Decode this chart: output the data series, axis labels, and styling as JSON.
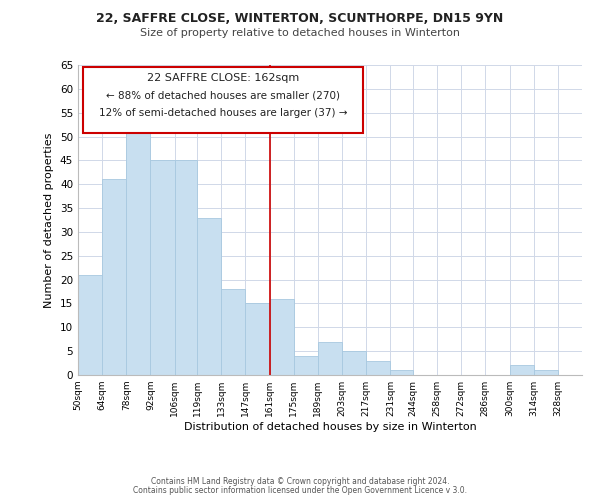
{
  "title": "22, SAFFRE CLOSE, WINTERTON, SCUNTHORPE, DN15 9YN",
  "subtitle": "Size of property relative to detached houses in Winterton",
  "xlabel": "Distribution of detached houses by size in Winterton",
  "ylabel": "Number of detached properties",
  "footer_line1": "Contains HM Land Registry data © Crown copyright and database right 2024.",
  "footer_line2": "Contains public sector information licensed under the Open Government Licence v 3.0.",
  "bar_left_edges": [
    50,
    64,
    78,
    92,
    106,
    119,
    133,
    147,
    161,
    175,
    189,
    203,
    217,
    231,
    244,
    258,
    272,
    286,
    300,
    314
  ],
  "bar_heights": [
    21,
    41,
    51,
    45,
    45,
    33,
    18,
    15,
    16,
    4,
    7,
    5,
    3,
    1,
    0,
    0,
    0,
    0,
    2,
    1
  ],
  "bar_widths": [
    14,
    14,
    14,
    14,
    13,
    14,
    14,
    14,
    14,
    14,
    14,
    14,
    14,
    13,
    14,
    14,
    14,
    14,
    14,
    14
  ],
  "tick_labels": [
    "50sqm",
    "64sqm",
    "78sqm",
    "92sqm",
    "106sqm",
    "119sqm",
    "133sqm",
    "147sqm",
    "161sqm",
    "175sqm",
    "189sqm",
    "203sqm",
    "217sqm",
    "231sqm",
    "244sqm",
    "258sqm",
    "272sqm",
    "286sqm",
    "300sqm",
    "314sqm",
    "328sqm"
  ],
  "bar_color": "#c8dff0",
  "bar_edgecolor": "#a8c8e0",
  "vline_x": 161,
  "vline_color": "#cc0000",
  "annotation_title": "22 SAFFRE CLOSE: 162sqm",
  "annotation_line1": "← 88% of detached houses are smaller (270)",
  "annotation_line2": "12% of semi-detached houses are larger (37) →",
  "annotation_box_edgecolor": "#cc0000",
  "ylim": [
    0,
    65
  ],
  "yticks": [
    0,
    5,
    10,
    15,
    20,
    25,
    30,
    35,
    40,
    45,
    50,
    55,
    60,
    65
  ],
  "xlim_min": 50,
  "xlim_max": 342,
  "background_color": "#ffffff",
  "grid_color": "#d0d8e8",
  "title_fontsize": 9,
  "subtitle_fontsize": 8,
  "ylabel_fontsize": 8,
  "xlabel_fontsize": 8,
  "tick_fontsize": 6.5,
  "ytick_fontsize": 7.5,
  "footer_fontsize": 5.5,
  "ann_title_fontsize": 8,
  "ann_text_fontsize": 7.5
}
